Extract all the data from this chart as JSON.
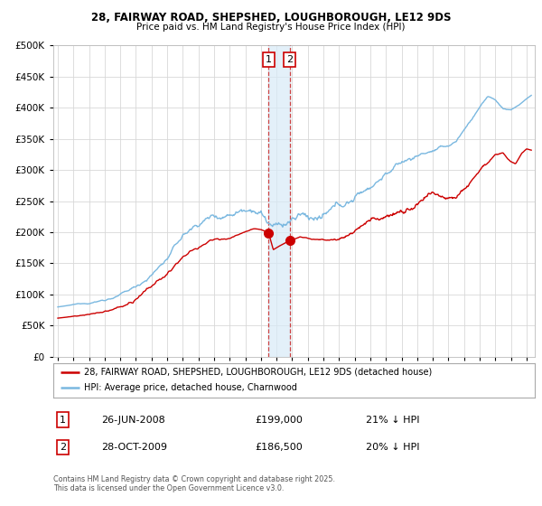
{
  "title_line1": "28, FAIRWAY ROAD, SHEPSHED, LOUGHBOROUGH, LE12 9DS",
  "title_line2": "Price paid vs. HM Land Registry's House Price Index (HPI)",
  "background_color": "#ffffff",
  "plot_bg_color": "#ffffff",
  "grid_color": "#d8d8d8",
  "hpi_color": "#7ab8e0",
  "price_color": "#cc0000",
  "transaction1_date_x": 2008.49,
  "transaction1_price": 199000,
  "transaction2_date_x": 2009.83,
  "transaction2_price": 186500,
  "legend_line1": "28, FAIRWAY ROAD, SHEPSHED, LOUGHBOROUGH, LE12 9DS (detached house)",
  "legend_line2": "HPI: Average price, detached house, Charnwood",
  "table_row1": [
    "1",
    "26-JUN-2008",
    "£199,000",
    "21% ↓ HPI"
  ],
  "table_row2": [
    "2",
    "28-OCT-2009",
    "£186,500",
    "20% ↓ HPI"
  ],
  "footer": "Contains HM Land Registry data © Crown copyright and database right 2025.\nThis data is licensed under the Open Government Licence v3.0.",
  "ylim": [
    0,
    500000
  ],
  "xlim": [
    1994.7,
    2025.5
  ],
  "hpi_anchors": [
    [
      1995.0,
      80000
    ],
    [
      1996.0,
      83000
    ],
    [
      1997.0,
      86000
    ],
    [
      1998.0,
      92000
    ],
    [
      1999.0,
      100000
    ],
    [
      2000.0,
      112000
    ],
    [
      2001.0,
      133000
    ],
    [
      2002.0,
      160000
    ],
    [
      2003.0,
      195000
    ],
    [
      2004.0,
      215000
    ],
    [
      2004.8,
      228000
    ],
    [
      2005.5,
      232000
    ],
    [
      2006.0,
      238000
    ],
    [
      2007.0,
      255000
    ],
    [
      2007.5,
      263000
    ],
    [
      2008.0,
      258000
    ],
    [
      2008.5,
      242000
    ],
    [
      2009.0,
      232000
    ],
    [
      2009.5,
      235000
    ],
    [
      2010.0,
      242000
    ],
    [
      2010.5,
      248000
    ],
    [
      2011.0,
      244000
    ],
    [
      2011.5,
      242000
    ],
    [
      2012.0,
      240000
    ],
    [
      2012.5,
      243000
    ],
    [
      2013.0,
      248000
    ],
    [
      2013.5,
      253000
    ],
    [
      2014.0,
      262000
    ],
    [
      2014.5,
      272000
    ],
    [
      2015.0,
      282000
    ],
    [
      2015.5,
      293000
    ],
    [
      2016.0,
      305000
    ],
    [
      2016.5,
      313000
    ],
    [
      2017.0,
      320000
    ],
    [
      2017.5,
      325000
    ],
    [
      2018.0,
      330000
    ],
    [
      2018.5,
      335000
    ],
    [
      2019.0,
      338000
    ],
    [
      2019.5,
      340000
    ],
    [
      2020.0,
      342000
    ],
    [
      2020.5,
      350000
    ],
    [
      2021.0,
      368000
    ],
    [
      2021.5,
      385000
    ],
    [
      2022.0,
      405000
    ],
    [
      2022.5,
      420000
    ],
    [
      2023.0,
      415000
    ],
    [
      2023.5,
      400000
    ],
    [
      2024.0,
      398000
    ],
    [
      2024.5,
      405000
    ],
    [
      2025.0,
      415000
    ],
    [
      2025.3,
      420000
    ]
  ],
  "price_anchors_pre": [
    [
      1995.0,
      62000
    ],
    [
      1996.0,
      64500
    ],
    [
      1997.0,
      67000
    ],
    [
      1998.0,
      71500
    ],
    [
      1999.0,
      77500
    ],
    [
      2000.0,
      87000
    ],
    [
      2001.0,
      103000
    ],
    [
      2002.0,
      124000
    ],
    [
      2003.0,
      151000
    ],
    [
      2004.0,
      166000
    ],
    [
      2004.8,
      177000
    ],
    [
      2005.5,
      181000
    ],
    [
      2006.0,
      185000
    ],
    [
      2007.0,
      198000
    ],
    [
      2007.5,
      204000
    ],
    [
      2008.0,
      203000
    ],
    [
      2008.49,
      199000
    ]
  ],
  "price_anchors_post": [
    [
      2009.83,
      186500
    ],
    [
      2010.0,
      188000
    ],
    [
      2010.5,
      192000
    ],
    [
      2011.0,
      189000
    ],
    [
      2011.5,
      188000
    ],
    [
      2012.0,
      186000
    ],
    [
      2012.5,
      188500
    ],
    [
      2013.0,
      192000
    ],
    [
      2013.5,
      196000
    ],
    [
      2014.0,
      204000
    ],
    [
      2014.5,
      212000
    ],
    [
      2015.0,
      220000
    ],
    [
      2015.5,
      228000
    ],
    [
      2016.0,
      238000
    ],
    [
      2016.5,
      244000
    ],
    [
      2017.0,
      250000
    ],
    [
      2017.5,
      254000
    ],
    [
      2018.0,
      258000
    ],
    [
      2018.5,
      263000
    ],
    [
      2019.0,
      265000
    ],
    [
      2019.5,
      267000
    ],
    [
      2020.0,
      268000
    ],
    [
      2020.5,
      274000
    ],
    [
      2021.0,
      288000
    ],
    [
      2021.5,
      300000
    ],
    [
      2022.0,
      316000
    ],
    [
      2022.5,
      328000
    ],
    [
      2023.0,
      340000
    ],
    [
      2023.5,
      338000
    ],
    [
      2023.8,
      325000
    ],
    [
      2024.0,
      320000
    ],
    [
      2024.3,
      315000
    ],
    [
      2024.7,
      330000
    ],
    [
      2025.0,
      335000
    ],
    [
      2025.3,
      332000
    ]
  ]
}
